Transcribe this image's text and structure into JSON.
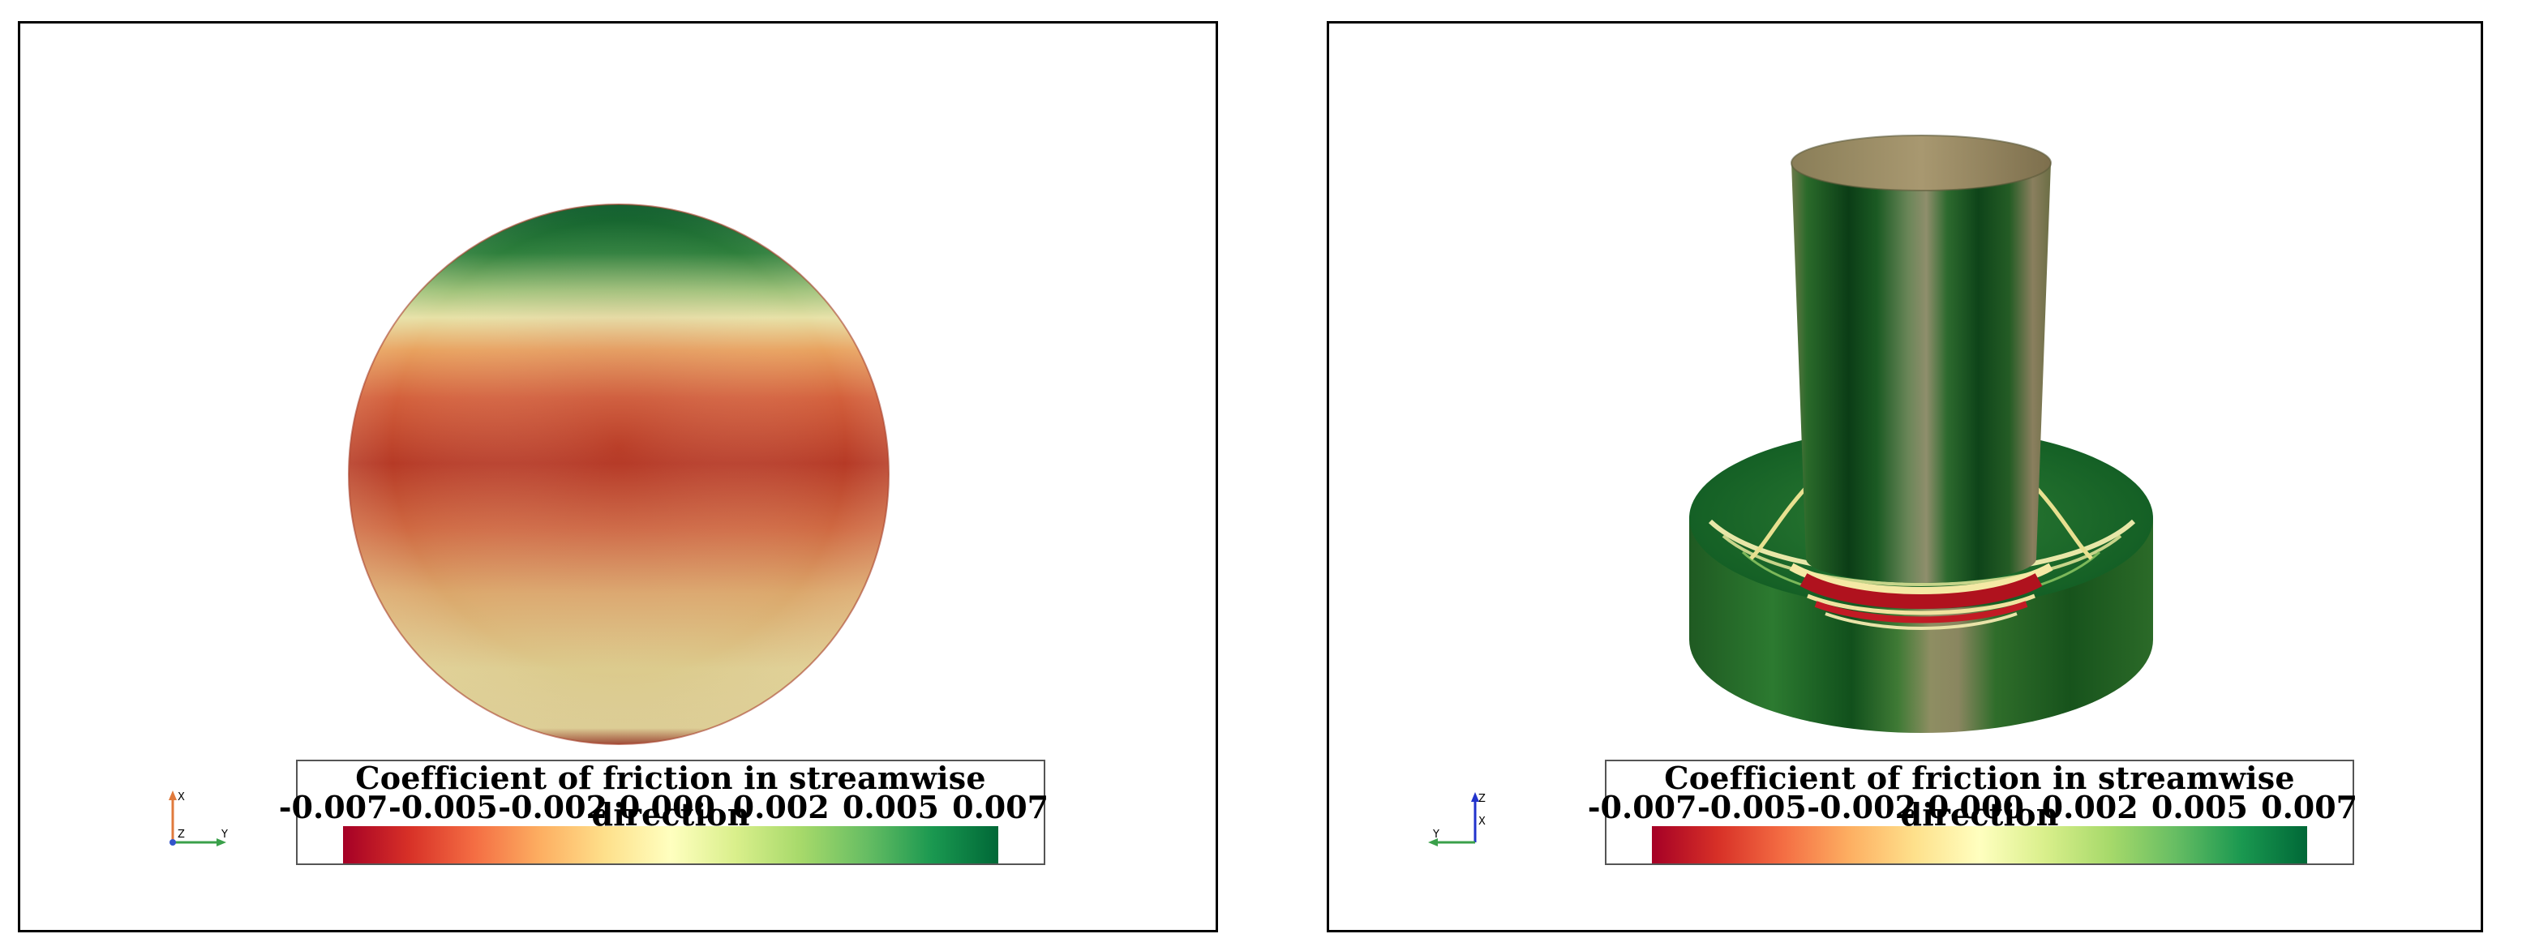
{
  "panels": [
    {
      "id": "left",
      "legend": {
        "title": "Coefficient of friction in streamwise direction",
        "ticks": [
          "-0.007",
          "-0.005",
          "-0.002",
          "0.000",
          "0.002",
          "0.005",
          "0.007"
        ]
      },
      "axes": {
        "up": "X",
        "origin": "Z",
        "right": "Y"
      }
    },
    {
      "id": "right",
      "legend": {
        "title": "Coefficient of friction in streamwise direction",
        "ticks": [
          "-0.007",
          "-0.005",
          "-0.002",
          "0.000",
          "0.002",
          "0.005",
          "0.007"
        ]
      },
      "axes": {
        "up": "Z",
        "origin": "X",
        "left": "Y"
      }
    }
  ],
  "colormap": {
    "name": "red-yellow-green diverging",
    "stops": [
      "#a50026",
      "#d73027",
      "#f46d43",
      "#fdae61",
      "#fee08b",
      "#ffffbf",
      "#d9ef8b",
      "#a6d96a",
      "#66bd63",
      "#1a9850",
      "#006837"
    ]
  }
}
